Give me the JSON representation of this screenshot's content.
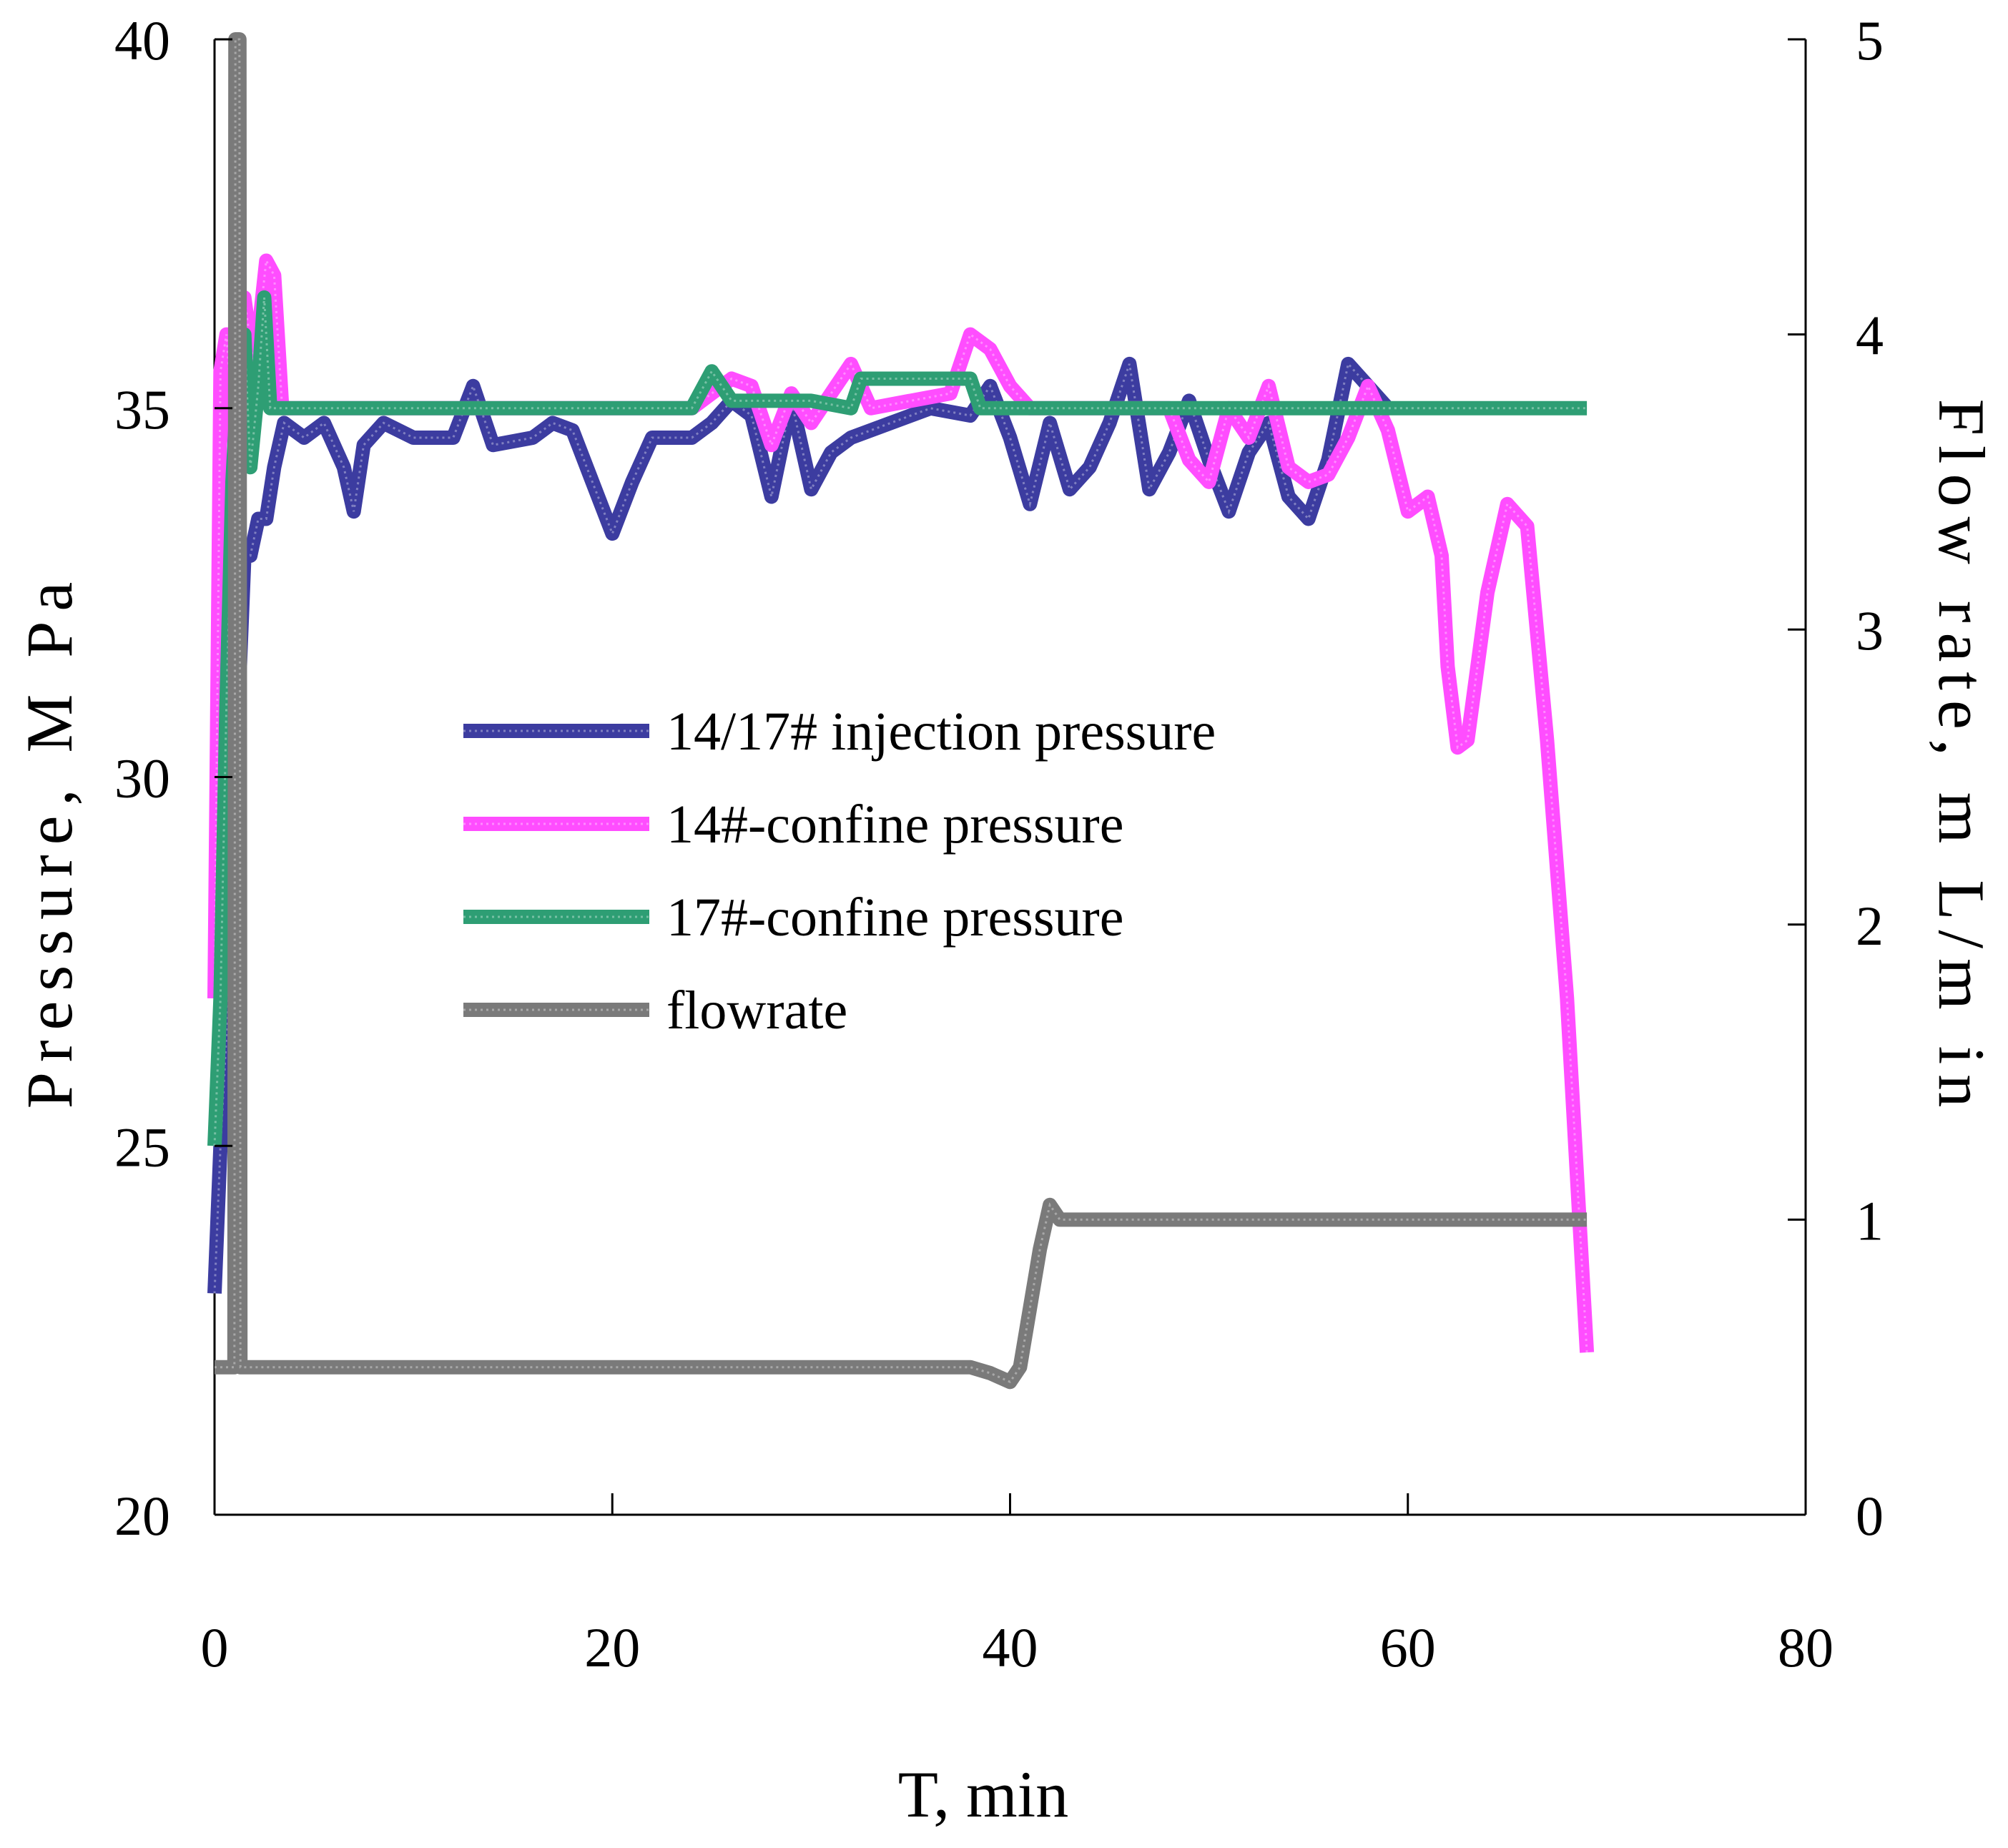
{
  "chart_data": {
    "type": "line",
    "title": "",
    "xlabel": "T, min",
    "ylabel_left": "Pressure, M Pa",
    "ylabel_right": "Flow rate, m L/m in",
    "xlim": [
      0,
      80
    ],
    "ylim_left": [
      20,
      40
    ],
    "ylim_right": [
      0,
      5
    ],
    "x_ticks": [
      0,
      20,
      40,
      60,
      80
    ],
    "y_left_ticks": [
      20,
      25,
      30,
      35,
      40
    ],
    "y_right_ticks": [
      0,
      1,
      2,
      3,
      4,
      5
    ],
    "legend_position": "center-left",
    "series": [
      {
        "name": "14/17# injection pressure",
        "axis": "left",
        "color": "#3c3ca0",
        "points": [
          [
            0,
            23
          ],
          [
            0.3,
            25
          ],
          [
            0.6,
            26.5
          ],
          [
            0.9,
            28.5
          ],
          [
            1.2,
            31
          ],
          [
            1.5,
            33
          ],
          [
            1.8,
            33
          ],
          [
            2.2,
            33.5
          ],
          [
            2.6,
            33.5
          ],
          [
            3.0,
            34.2
          ],
          [
            3.5,
            34.8
          ],
          [
            4.5,
            34.6
          ],
          [
            5.5,
            34.8
          ],
          [
            6.5,
            34.2
          ],
          [
            7.0,
            33.6
          ],
          [
            7.5,
            34.5
          ],
          [
            8.5,
            34.8
          ],
          [
            10,
            34.6
          ],
          [
            12,
            34.6
          ],
          [
            13,
            35.3
          ],
          [
            14,
            34.5
          ],
          [
            16,
            34.6
          ],
          [
            17,
            34.8
          ],
          [
            18,
            34.7
          ],
          [
            19,
            34
          ],
          [
            20,
            33.3
          ],
          [
            21,
            34
          ],
          [
            22,
            34.6
          ],
          [
            24,
            34.6
          ],
          [
            25,
            34.8
          ],
          [
            26,
            35.1
          ],
          [
            27,
            34.9
          ],
          [
            28,
            33.8
          ],
          [
            29,
            35.1
          ],
          [
            30,
            33.9
          ],
          [
            31,
            34.4
          ],
          [
            32,
            34.6
          ],
          [
            34,
            34.8
          ],
          [
            36,
            35
          ],
          [
            38,
            34.9
          ],
          [
            39,
            35.3
          ],
          [
            40,
            34.6
          ],
          [
            41,
            33.7
          ],
          [
            42,
            34.8
          ],
          [
            43,
            33.9
          ],
          [
            44,
            34.2
          ],
          [
            45,
            34.8
          ],
          [
            46,
            35.6
          ],
          [
            47,
            33.9
          ],
          [
            48,
            34.4
          ],
          [
            49,
            35.1
          ],
          [
            50,
            34.3
          ],
          [
            51,
            33.6
          ],
          [
            52,
            34.4
          ],
          [
            53,
            34.8
          ],
          [
            54,
            33.8
          ],
          [
            55,
            33.5
          ],
          [
            56,
            34.3
          ],
          [
            57,
            35.6
          ],
          [
            58,
            35.3
          ],
          [
            59,
            35
          ]
        ]
      },
      {
        "name": "14#-confine pressure",
        "axis": "left",
        "color": "#ff4dff",
        "points": [
          [
            0,
            27
          ],
          [
            0.3,
            35.5
          ],
          [
            0.6,
            36
          ],
          [
            1.0,
            34.5
          ],
          [
            1.5,
            36.5
          ],
          [
            2.0,
            35.5
          ],
          [
            2.6,
            37
          ],
          [
            3.0,
            36.8
          ],
          [
            3.4,
            35
          ],
          [
            5,
            35
          ],
          [
            10,
            35
          ],
          [
            15,
            35
          ],
          [
            20,
            35
          ],
          [
            24,
            35
          ],
          [
            25,
            35.2
          ],
          [
            26,
            35.4
          ],
          [
            27,
            35.3
          ],
          [
            28,
            34.5
          ],
          [
            29,
            35.2
          ],
          [
            30,
            34.8
          ],
          [
            31,
            35.2
          ],
          [
            32,
            35.6
          ],
          [
            33,
            35
          ],
          [
            35,
            35.1
          ],
          [
            37,
            35.2
          ],
          [
            38,
            36
          ],
          [
            39,
            35.8
          ],
          [
            40,
            35.3
          ],
          [
            41,
            35
          ],
          [
            42,
            35
          ],
          [
            44,
            35
          ],
          [
            46,
            35
          ],
          [
            48,
            35
          ],
          [
            49,
            34.3
          ],
          [
            50,
            34
          ],
          [
            51,
            35
          ],
          [
            52,
            34.6
          ],
          [
            53,
            35.3
          ],
          [
            54,
            34.2
          ],
          [
            55,
            34
          ],
          [
            56,
            34.1
          ],
          [
            57,
            34.6
          ],
          [
            58,
            35.3
          ],
          [
            59,
            34.7
          ],
          [
            60,
            33.6
          ],
          [
            61,
            33.8
          ],
          [
            61.7,
            33
          ],
          [
            62,
            31.5
          ],
          [
            62.5,
            30.4
          ],
          [
            63,
            30.5
          ],
          [
            64,
            32.5
          ],
          [
            65,
            33.7
          ],
          [
            66,
            33.4
          ],
          [
            67,
            30.5
          ],
          [
            68,
            27
          ],
          [
            69,
            22.2
          ]
        ]
      },
      {
        "name": "17#-confine pressure",
        "axis": "left",
        "color": "#2e9e74",
        "points": [
          [
            0,
            25
          ],
          [
            0.3,
            27
          ],
          [
            0.6,
            31
          ],
          [
            0.9,
            34
          ],
          [
            1.2,
            35.5
          ],
          [
            1.5,
            36
          ],
          [
            1.8,
            34.2
          ],
          [
            2.2,
            35.3
          ],
          [
            2.5,
            36.5
          ],
          [
            2.8,
            35
          ],
          [
            3.2,
            35
          ],
          [
            5,
            35
          ],
          [
            10,
            35
          ],
          [
            15,
            35
          ],
          [
            20,
            35
          ],
          [
            24,
            35
          ],
          [
            25,
            35.5
          ],
          [
            26,
            35.1
          ],
          [
            28,
            35.1
          ],
          [
            30,
            35.1
          ],
          [
            32,
            35
          ],
          [
            32.5,
            35.4
          ],
          [
            34,
            35.4
          ],
          [
            36,
            35.4
          ],
          [
            38,
            35.4
          ],
          [
            38.5,
            35
          ],
          [
            40,
            35
          ],
          [
            45,
            35
          ],
          [
            50,
            35
          ],
          [
            55,
            35
          ],
          [
            60,
            35
          ],
          [
            65,
            35
          ],
          [
            69,
            35
          ]
        ]
      },
      {
        "name": "flowrate",
        "axis": "right",
        "color": "#7a7a7a",
        "points": [
          [
            0,
            0.5
          ],
          [
            1.0,
            0.5
          ],
          [
            1.05,
            5
          ],
          [
            1.25,
            5
          ],
          [
            1.3,
            0.5
          ],
          [
            35,
            0.5
          ],
          [
            38,
            0.5
          ],
          [
            39,
            0.48
          ],
          [
            40,
            0.45
          ],
          [
            40.5,
            0.5
          ],
          [
            41,
            0.7
          ],
          [
            41.5,
            0.9
          ],
          [
            42,
            1.05
          ],
          [
            42.5,
            1.0
          ],
          [
            45,
            1.0
          ],
          [
            50,
            1.0
          ],
          [
            55,
            1.0
          ],
          [
            60,
            1.0
          ],
          [
            65,
            1.0
          ],
          [
            69,
            1.0
          ]
        ]
      }
    ]
  }
}
